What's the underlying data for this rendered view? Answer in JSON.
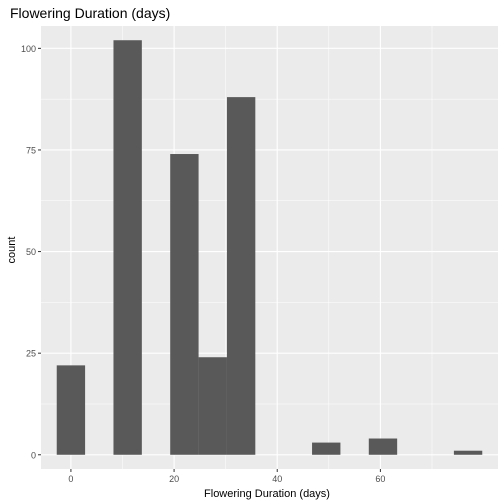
{
  "chart_data": {
    "type": "bar",
    "title": "Flowering Duration (days)",
    "xlabel": "Flowering Duration (days)",
    "ylabel": "count",
    "bin_width": 5.5,
    "bins": [
      {
        "x": 0,
        "count": 22
      },
      {
        "x": 5.5,
        "count": 0
      },
      {
        "x": 11,
        "count": 102
      },
      {
        "x": 16.5,
        "count": 0
      },
      {
        "x": 22,
        "count": 74
      },
      {
        "x": 27.5,
        "count": 24
      },
      {
        "x": 33,
        "count": 88
      },
      {
        "x": 38.5,
        "count": 0
      },
      {
        "x": 44,
        "count": 0
      },
      {
        "x": 49.5,
        "count": 3
      },
      {
        "x": 55,
        "count": 0
      },
      {
        "x": 60.5,
        "count": 4
      },
      {
        "x": 66,
        "count": 0
      },
      {
        "x": 71.5,
        "count": 0
      },
      {
        "x": 77,
        "count": 1
      }
    ],
    "xlim": [
      -5.8,
      82.8
    ],
    "ylim": [
      -3.5,
      105.5
    ],
    "x_ticks": [
      0,
      20,
      40,
      60
    ],
    "x_tick_labels": [
      "0",
      "20",
      "40",
      "60"
    ],
    "y_ticks": [
      0,
      25,
      50,
      75,
      100
    ],
    "y_tick_labels": [
      "0",
      "25",
      "50",
      "75",
      "100"
    ],
    "grid": true,
    "colors": {
      "panel": "#ebebeb",
      "grid_major": "#ffffff",
      "bar": "#595959",
      "text": "#000000",
      "tick_text": "#4d4d4d"
    }
  }
}
